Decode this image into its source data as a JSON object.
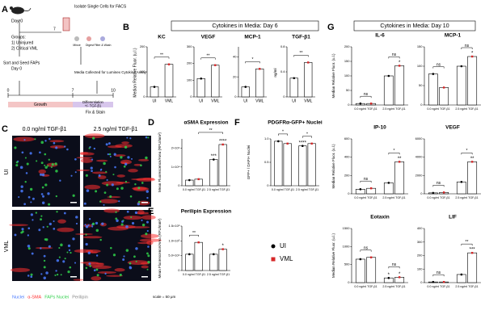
{
  "panel_a": {
    "label": "A",
    "day_start": "Day 0",
    "groups_title": "Groups:",
    "group_1": "1) Uninjured",
    "group_2": "2) Critical VML",
    "arrow_day": "7",
    "isolate": "Isolate Single Cells for FACS",
    "steps": [
      "Mince",
      "Digest",
      "Filter & Wash"
    ],
    "sort_seed": "Sort and Seed FAPs",
    "sort_day": "Day 0",
    "media": "Media Collected for Luminex Cytokine Assay",
    "timeline_ticks": [
      "0",
      "7",
      "10"
    ],
    "growth": "Growth",
    "differentiation": "Differentiation",
    "treatment": "+/- TGF-β1",
    "fix": "Fix & Stain"
  },
  "panel_b": {
    "label": "B",
    "header": "Cytokines in Media: Day 6",
    "y_label": "Median Relative Fluor. (u.l.)",
    "colors": [
      "#000000",
      "#d62728"
    ],
    "charts": [
      {
        "title": "KC",
        "categories": [
          "UI",
          "VML"
        ],
        "values": [
          40,
          130
        ],
        "ylim": [
          0,
          200
        ],
        "yticks": [
          0,
          100,
          200
        ],
        "annotations": [
          "**"
        ]
      },
      {
        "title": "VEGF",
        "categories": [
          "UI",
          "VML"
        ],
        "values": [
          110,
          190
        ],
        "ylim": [
          0,
          300
        ],
        "yticks": [
          0,
          100,
          200,
          300
        ],
        "annotations": [
          "**"
        ]
      },
      {
        "title": "MCP-1",
        "categories": [
          "UI",
          "VML"
        ],
        "values": [
          10,
          28
        ],
        "ylim": [
          0,
          50
        ],
        "yticks": [
          0,
          20,
          40
        ],
        "annotations": [
          "*"
        ]
      },
      {
        "title": "TGF-β1",
        "y_label": "ng/ml",
        "categories": [
          "UI",
          "VML"
        ],
        "values": [
          0.3,
          0.55
        ],
        "ylim": [
          0,
          0.8
        ],
        "yticks": [
          0,
          0.4,
          0.8
        ],
        "annotations": [
          "**"
        ]
      }
    ]
  },
  "panel_c": {
    "label": "C",
    "columns": [
      "0.0 ng/ml TGF-β1",
      "2.5 ng/ml TGF-β1"
    ],
    "rows": [
      "UI",
      "VML"
    ],
    "stains": [
      {
        "name": "Nuclei",
        "color": "#4a7bff"
      },
      {
        "name": "α-SMA",
        "color": "#ff3030"
      },
      {
        "name": "FAPs Nuclei",
        "color": "#2fd04a"
      },
      {
        "name": "Perilipin",
        "color": "#dddddd"
      }
    ],
    "scale": "scale = 50 μm"
  },
  "legend": [
    {
      "name": "UI",
      "color": "#000000"
    },
    {
      "name": "VML",
      "color": "#d62728"
    }
  ],
  "panel_d": {
    "label": "D",
    "title": "αSMA Expression",
    "y_label": "Mean Fluorescence/Area (RFU/mm²)",
    "categories": [
      "0.0 ng/ml TGF-β1",
      "2.5 ng/ml TGF-β1"
    ],
    "series": [
      {
        "values": [
          3000,
          14000
        ]
      },
      {
        "values": [
          3500,
          22000
        ]
      }
    ],
    "ylim": [
      0,
      25000
    ],
    "yticks": [
      0,
      {
        "value": 10000,
        "label": "1×10⁴"
      },
      {
        "value": 20000,
        "label": "2×10⁴"
      }
    ],
    "annotations": [
      "**",
      "***",
      "****"
    ]
  },
  "panel_e": {
    "label": "E",
    "title": "Perilipin Expression",
    "y_label": "Mean Fluorescence/Area (RFU/mm²)",
    "categories": [
      "0.0 ng/ml TGF-β1",
      "2.5 ng/ml TGF-β1"
    ],
    "series": [
      {
        "values": [
          55000,
          55000
        ]
      },
      {
        "values": [
          95000,
          72000
        ]
      }
    ],
    "ylim": [
      0,
      150000
    ],
    "yticks": [
      0,
      {
        "value": 50000,
        "label": "5.0×10⁴"
      },
      {
        "value": 100000,
        "label": "1.0×10⁵"
      },
      {
        "value": 150000,
        "label": "1.5×10⁵"
      }
    ],
    "annotations": [
      "**",
      "*"
    ]
  },
  "panel_f": {
    "label": "F",
    "title": "PDGFRα-GFP+ Nuclei",
    "y_label": "GFP+ / DAPI+ Nuclei",
    "categories": [
      "0.0 ng/ml TGF-β1",
      "2.5 ng/ml TGF-β1"
    ],
    "series": [
      {
        "values": [
          0.95,
          0.85
        ]
      },
      {
        "values": [
          0.9,
          0.9
        ]
      }
    ],
    "ylim": [
      0,
      1
    ],
    "yticks": [
      0,
      0.5,
      {
        "value": 1,
        "label": "1.0"
      }
    ],
    "annotations": [
      "*",
      "*",
      "****"
    ]
  },
  "panel_g": {
    "label": "G",
    "header": "Cytokines in Media: Day 10",
    "y_label": "Median Relative Fluor. (u.l.)",
    "categories": [
      "0.0 ng/ml TGF-β1",
      "2.5 ng/ml TGF-β1"
    ],
    "charts": [
      {
        "title": "IL-6",
        "series": [
          {
            "values": [
              5,
              100
            ]
          },
          {
            "values": [
              5,
              135
            ]
          }
        ],
        "ylim": [
          0,
          200
        ],
        "yticks": [
          0,
          50,
          100,
          150,
          200
        ],
        "annotations": [
          "ns",
          "ns",
          "*"
        ]
      },
      {
        "title": "MCP-1",
        "series": [
          {
            "values": [
              80,
              100
            ]
          },
          {
            "values": [
              45,
              125
            ]
          }
        ],
        "ylim": [
          0,
          150
        ],
        "yticks": [
          0,
          50,
          100,
          150
        ],
        "annotations": [
          "ns",
          "ns",
          "*"
        ]
      },
      {
        "title": "IP-10",
        "series": [
          {
            "values": [
              50,
              120
            ]
          },
          {
            "values": [
              60,
              350
            ]
          }
        ],
        "ylim": [
          0,
          600
        ],
        "yticks": [
          0,
          200,
          400,
          600
        ],
        "annotations": [
          "ns",
          "*",
          "**"
        ]
      },
      {
        "title": "VEGF",
        "series": [
          {
            "values": [
              100,
              1300
            ]
          },
          {
            "values": [
              150,
              3500
            ]
          }
        ],
        "ylim": [
          0,
          6000
        ],
        "yticks": [
          0,
          2000,
          4000,
          6000
        ],
        "annotations": [
          "ns",
          "*",
          "**"
        ]
      },
      {
        "title": "Eotaxin",
        "series": [
          {
            "values": [
              650,
              130
            ]
          },
          {
            "values": [
              700,
              150
            ]
          }
        ],
        "ylim": [
          0,
          1500
        ],
        "yticks": [
          0,
          500,
          1000,
          1500
        ],
        "annotations": [
          "ns",
          "ns",
          "*",
          "*"
        ]
      },
      {
        "title": "LIF",
        "series": [
          {
            "values": [
              5,
              60
            ]
          },
          {
            "values": [
              5,
              220
            ]
          }
        ],
        "ylim": [
          0,
          400
        ],
        "yticks": [
          0,
          100,
          200,
          300,
          400
        ],
        "annotations": [
          "ns",
          "**",
          "***"
        ]
      }
    ]
  }
}
